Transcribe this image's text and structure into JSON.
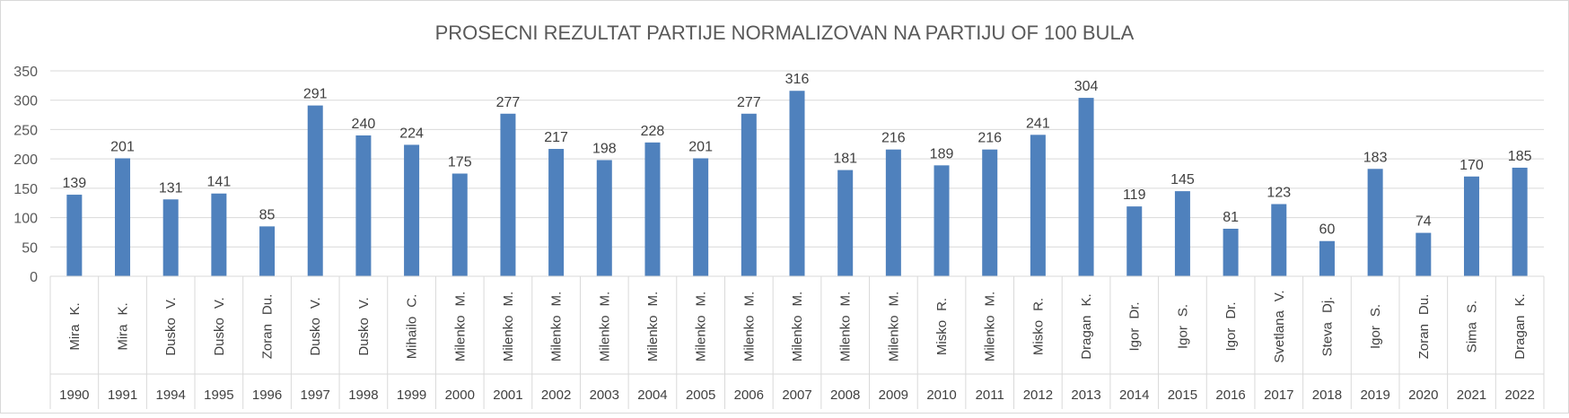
{
  "chart_data": {
    "type": "bar",
    "title": "PROSECNI REZULTAT PARTIJE NORMALIZOVAN NA PARTIJU OF 100 BULA",
    "xlabel": "",
    "ylabel": "",
    "ylim": [
      0,
      350
    ],
    "yticks": [
      0,
      50,
      100,
      150,
      200,
      250,
      300,
      350
    ],
    "grid": true,
    "legend": "none",
    "bar_color": "#4f81bd",
    "categories": [
      {
        "first": "Mira",
        "second": "K.",
        "year": "1990"
      },
      {
        "first": "Mira",
        "second": "K.",
        "year": "1991"
      },
      {
        "first": "Dusko",
        "second": "V.",
        "year": "1994"
      },
      {
        "first": "Dusko",
        "second": "V.",
        "year": "1995"
      },
      {
        "first": "Zoran",
        "second": "Du.",
        "year": "1996"
      },
      {
        "first": "Dusko",
        "second": "V.",
        "year": "1997"
      },
      {
        "first": "Dusko",
        "second": "V.",
        "year": "1998"
      },
      {
        "first": "Mihailo",
        "second": "C.",
        "year": "1999"
      },
      {
        "first": "Milenko",
        "second": "M.",
        "year": "2000"
      },
      {
        "first": "Milenko",
        "second": "M.",
        "year": "2001"
      },
      {
        "first": "Milenko",
        "second": "M.",
        "year": "2002"
      },
      {
        "first": "Milenko",
        "second": "M.",
        "year": "2003"
      },
      {
        "first": "Milenko",
        "second": "M.",
        "year": "2004"
      },
      {
        "first": "Milenko",
        "second": "M.",
        "year": "2005"
      },
      {
        "first": "Milenko",
        "second": "M.",
        "year": "2006"
      },
      {
        "first": "Milenko",
        "second": "M.",
        "year": "2007"
      },
      {
        "first": "Milenko",
        "second": "M.",
        "year": "2008"
      },
      {
        "first": "Milenko",
        "second": "M.",
        "year": "2009"
      },
      {
        "first": "Misko",
        "second": "R.",
        "year": "2010"
      },
      {
        "first": "Milenko",
        "second": "M.",
        "year": "2011"
      },
      {
        "first": "Misko",
        "second": "R.",
        "year": "2012"
      },
      {
        "first": "Dragan",
        "second": "K.",
        "year": "2013"
      },
      {
        "first": "Igor",
        "second": "Dr.",
        "year": "2014"
      },
      {
        "first": "Igor",
        "second": "S.",
        "year": "2015"
      },
      {
        "first": "Igor",
        "second": "Dr.",
        "year": "2016"
      },
      {
        "first": "Svetlana",
        "second": "V.",
        "year": "2017"
      },
      {
        "first": "Steva",
        "second": "Dj.",
        "year": "2018"
      },
      {
        "first": "Igor",
        "second": "S.",
        "year": "2019"
      },
      {
        "first": "Zoran",
        "second": "Du.",
        "year": "2020"
      },
      {
        "first": "Sima",
        "second": "S.",
        "year": "2021"
      },
      {
        "first": "Dragan",
        "second": "K.",
        "year": "2022"
      }
    ],
    "values": [
      139,
      201,
      131,
      141,
      85,
      291,
      240,
      224,
      175,
      277,
      217,
      198,
      228,
      201,
      277,
      316,
      181,
      216,
      189,
      216,
      241,
      304,
      119,
      145,
      81,
      123,
      60,
      183,
      74,
      170,
      185
    ]
  }
}
